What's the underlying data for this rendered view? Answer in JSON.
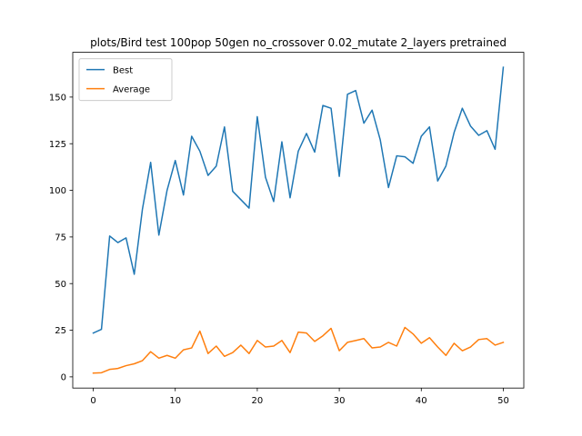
{
  "chart_data": {
    "type": "line",
    "title": "plots/Bird test 100pop 50gen no_crossover 0.02_mutate 2_layers pretrained",
    "xlabel": "",
    "ylabel": "",
    "xlim": [
      -2.5,
      52.5
    ],
    "ylim": [
      -6,
      174
    ],
    "xticks": [
      0,
      10,
      20,
      30,
      40,
      50
    ],
    "yticks": [
      0,
      25,
      50,
      75,
      100,
      125,
      150
    ],
    "grid": false,
    "legend_position": "upper-left",
    "x": [
      0,
      1,
      2,
      3,
      4,
      5,
      6,
      7,
      8,
      9,
      10,
      11,
      12,
      13,
      14,
      15,
      16,
      17,
      18,
      19,
      20,
      21,
      22,
      23,
      24,
      25,
      26,
      27,
      28,
      29,
      30,
      31,
      32,
      33,
      34,
      35,
      36,
      37,
      38,
      39,
      40,
      41,
      42,
      43,
      44,
      45,
      46,
      47,
      48,
      49,
      50
    ],
    "series": [
      {
        "name": "Best",
        "color": "#1f77b4",
        "values": [
          23.5,
          25.5,
          75.5,
          72,
          74.5,
          55,
          90,
          115,
          76,
          100,
          116,
          97.5,
          129,
          121,
          108,
          113,
          134,
          99.5,
          95,
          90.5,
          139.5,
          107,
          94,
          126,
          96,
          121,
          130.5,
          120.5,
          145.5,
          144,
          107.5,
          151.5,
          153.5,
          136,
          143,
          127,
          101.5,
          118.5,
          118,
          114.5,
          129,
          134,
          105,
          113,
          131,
          144,
          134.5,
          129.5,
          132,
          122,
          166
        ]
      },
      {
        "name": "Average",
        "color": "#ff7f0e",
        "values": [
          2,
          2.2,
          4,
          4.5,
          6,
          7,
          8.7,
          13.5,
          10,
          11.5,
          10,
          14.5,
          15.5,
          24.5,
          12.5,
          16.5,
          11,
          13,
          17,
          12.5,
          19.5,
          16,
          16.5,
          19.5,
          13,
          24,
          23.5,
          19,
          22,
          26,
          14,
          18.5,
          19.5,
          20.5,
          15.5,
          16,
          18.5,
          16.5,
          26.5,
          23,
          18,
          21,
          16,
          11.5,
          18,
          14,
          16,
          20,
          20.5,
          17,
          18.5
        ]
      }
    ]
  }
}
